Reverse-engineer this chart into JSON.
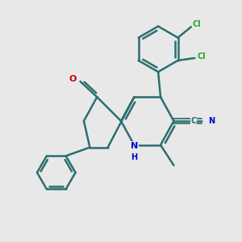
{
  "background_color": "#e8e8e8",
  "bond_color": "#2d6e6e",
  "bond_width": 1.8,
  "atom_colors": {
    "N": "#0000cc",
    "O": "#cc0000",
    "Cl": "#22aa22",
    "default": "#2d6e6e"
  }
}
